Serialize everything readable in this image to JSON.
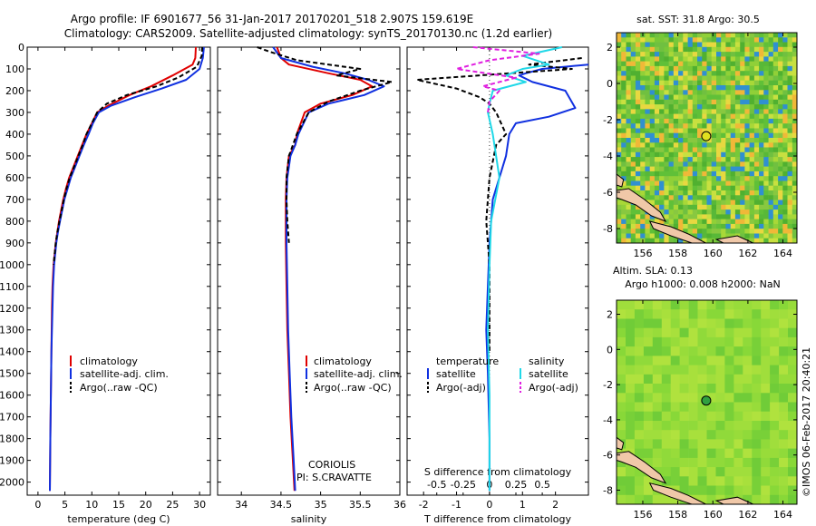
{
  "title_line1": "Argo profile: IF 6901677_56 31-Jan-2017 20170201_518 2.907S 159.619E",
  "title_line2": "Climatology: CARS2009. Satellite-adjusted climatology: synTS_20170130.nc (1.2d earlier)",
  "depth_ticks": [
    "0",
    "100",
    "200",
    "300",
    "400",
    "500",
    "600",
    "700",
    "800",
    "900",
    "1000",
    "1100",
    "1200",
    "1300",
    "1400",
    "1500",
    "1600",
    "1700",
    "1800",
    "1900",
    "2000"
  ],
  "colors": {
    "clim": "#e00000",
    "sat": "#1030e0",
    "argo": "#000000",
    "sat_s": "#20d8e8",
    "argo_s": "#e020e0"
  },
  "legend": {
    "clim": "climatology",
    "sat": "satellite-adj. clim.",
    "argo": "Argo(..raw -QC)"
  },
  "credit": {
    "line1": "CORIOLIS",
    "line2": "PI: S.CRAVATTE"
  },
  "diff_legend": {
    "temp_hdr": "temperature",
    "sal_hdr": "salinity",
    "sat": "satellite",
    "argo": "Argo(-adj)"
  },
  "map1_title": "sat. SST: 31.8 Argo: 30.5",
  "map2_title1": "Altim. SLA: 0.13",
  "map2_title2": "Argo h1000: 0.008 h2000: NaN",
  "map_yticks": [
    "2",
    "0",
    "-2",
    "-4",
    "-6",
    "-8"
  ],
  "map_xticks": [
    "156",
    "158",
    "160",
    "162",
    "164"
  ],
  "timestamp": "©IMOS 06-Feb-2017 20:40:21",
  "chart_data": [
    {
      "type": "line",
      "title": "",
      "xlabel": "temperature (deg C)",
      "ylabel": "depth",
      "xlim": [
        -2,
        32
      ],
      "ylim": [
        0,
        2060
      ],
      "xticklabels": [
        "0",
        "5",
        "10",
        "15",
        "20",
        "25",
        "30"
      ],
      "series": [
        {
          "name": "climatology",
          "color": "#e00000",
          "x": [
            29.3,
            29.2,
            28.7,
            25,
            21,
            17,
            13,
            11,
            10,
            9,
            8.2,
            7.4,
            6.6,
            5.8,
            5.2,
            4.7,
            4.3,
            3.9,
            3.6,
            3.3,
            3.1,
            2.9,
            2.7,
            2.6,
            2.5,
            2.4,
            2.3,
            2.2
          ],
          "y": [
            0,
            50,
            80,
            130,
            180,
            220,
            270,
            300,
            350,
            400,
            450,
            500,
            550,
            600,
            650,
            700,
            750,
            800,
            850,
            900,
            950,
            1000,
            1100,
            1200,
            1400,
            1600,
            1800,
            2040
          ]
        },
        {
          "name": "satellite-adj. clim.",
          "color": "#1030e0",
          "x": [
            30.8,
            30.6,
            30,
            27.5,
            23,
            18,
            13.5,
            11.3,
            10.2,
            9.4,
            8.5,
            7.7,
            6.9,
            6.1,
            5.5,
            4.9,
            4.5,
            4.1,
            3.7,
            3.4,
            3.2,
            3,
            2.8,
            2.7,
            2.5,
            2.4,
            2.3,
            2.2
          ],
          "y": [
            0,
            50,
            100,
            150,
            190,
            230,
            270,
            300,
            350,
            400,
            450,
            500,
            550,
            600,
            650,
            700,
            750,
            800,
            850,
            900,
            950,
            1000,
            1100,
            1200,
            1400,
            1600,
            1800,
            2040
          ]
        },
        {
          "name": "Argo(..raw -QC)",
          "color": "#000000",
          "dash": true,
          "x": [
            30.5,
            30.4,
            29.5,
            26,
            22,
            16.5,
            12.8,
            11,
            10,
            9,
            8.3,
            7.5,
            6.7,
            5.9,
            5.3,
            4.8,
            4.4,
            4,
            3.6,
            3.3,
            3.1,
            2.9
          ],
          "y": [
            0,
            40,
            90,
            140,
            180,
            220,
            260,
            300,
            350,
            400,
            450,
            500,
            550,
            600,
            650,
            700,
            750,
            800,
            850,
            900,
            950,
            1000
          ]
        }
      ]
    },
    {
      "type": "line",
      "title": "",
      "xlabel": "salinity",
      "ylabel": "depth",
      "xlim": [
        33.7,
        36
      ],
      "ylim": [
        0,
        2060
      ],
      "xticklabels": [
        "34",
        "34.5",
        "35",
        "35.5",
        "36"
      ],
      "series": [
        {
          "name": "climatology",
          "color": "#e00000",
          "x": [
            34.45,
            34.5,
            34.6,
            35.1,
            35.5,
            35.65,
            35.4,
            35,
            34.8,
            34.7,
            34.68,
            34.6,
            34.57,
            34.56,
            34.56,
            34.57,
            34.58,
            34.6,
            34.62,
            34.65,
            34.67
          ],
          "y": [
            0,
            50,
            80,
            120,
            150,
            180,
            220,
            260,
            300,
            400,
            450,
            500,
            600,
            700,
            900,
            1100,
            1300,
            1500,
            1700,
            1900,
            2040
          ]
        },
        {
          "name": "satellite-adj. clim.",
          "color": "#1030e0",
          "x": [
            34.4,
            34.5,
            34.9,
            35.3,
            35.6,
            35.8,
            35.55,
            35.1,
            34.85,
            34.72,
            34.68,
            34.62,
            34.58,
            34.57,
            34.57,
            34.58,
            34.59,
            34.61,
            34.63,
            34.66,
            34.68
          ],
          "y": [
            0,
            50,
            90,
            120,
            150,
            180,
            220,
            260,
            300,
            400,
            450,
            500,
            600,
            700,
            900,
            1100,
            1300,
            1500,
            1700,
            1900,
            2040
          ]
        },
        {
          "name": "Argo(..raw -QC)",
          "color": "#000000",
          "dash": true,
          "x": [
            34.2,
            34.35,
            34.7,
            35.5,
            35.2,
            35.9,
            35.5,
            35.1,
            34.85,
            34.7,
            34.6,
            34.57,
            34.57,
            34.58,
            34.6
          ],
          "y": [
            0,
            20,
            60,
            100,
            130,
            160,
            200,
            250,
            300,
            400,
            500,
            600,
            700,
            800,
            900
          ]
        }
      ]
    },
    {
      "type": "line",
      "title": "",
      "xlabel": "T difference from climatology",
      "x2label": "S difference from climatology",
      "ylabel": "depth",
      "xlim": [
        -2.5,
        3
      ],
      "ylim": [
        0,
        2060
      ],
      "xticklabels": [
        "-2",
        "-1",
        "0",
        "1",
        "2"
      ],
      "x2ticklabels": [
        "-0.5",
        "-0.25",
        "0",
        "0.25",
        "0.5"
      ],
      "series": [
        {
          "name": "temperature satellite",
          "color": "#1030e0",
          "x": [
            3,
            1.6,
            1.1,
            0.9,
            1.3,
            2.3,
            2.6,
            1.8,
            0.8,
            0.6,
            0.5,
            0.3,
            0.1,
            0,
            -0.05,
            -0.1,
            -0.05,
            0,
            0
          ],
          "y": [
            80,
            100,
            120,
            130,
            160,
            200,
            280,
            320,
            350,
            400,
            500,
            600,
            700,
            900,
            1100,
            1300,
            1500,
            1800,
            2040
          ]
        },
        {
          "name": "temperature Argo(-adj)",
          "color": "#000000",
          "dash": true,
          "x": [
            2.8,
            1.2,
            2.5,
            -2.2,
            -1,
            -0.3,
            0,
            0.2,
            0.5,
            0.2,
            0,
            -0.1,
            0,
            0
          ],
          "y": [
            50,
            80,
            100,
            150,
            190,
            230,
            260,
            300,
            400,
            450,
            600,
            800,
            1000,
            1400
          ]
        },
        {
          "name": "salinity satellite",
          "color": "#20d8e8",
          "x": [
            2.2,
            1,
            1.8,
            1,
            0.5,
            1.1,
            0.1,
            0,
            -0.05,
            0.1,
            0.3,
            0.05,
            0,
            -0.05,
            0,
            0
          ],
          "y": [
            0,
            40,
            80,
            100,
            130,
            160,
            200,
            260,
            300,
            400,
            600,
            800,
            1000,
            1300,
            1600,
            2040
          ]
        },
        {
          "name": "salinity Argo(-adj)",
          "color": "#e020e0",
          "dash": true,
          "x": [
            -0.5,
            1.5,
            0,
            -1,
            0.8,
            -0.2,
            0.3,
            0,
            -0.05
          ],
          "y": [
            0,
            30,
            60,
            100,
            140,
            180,
            200,
            250,
            300
          ]
        }
      ]
    },
    {
      "type": "heatmap",
      "title": "sat. SST: 31.8 Argo: 30.5",
      "xlim": [
        154.5,
        164.8
      ],
      "ylim": [
        -8.8,
        2.8
      ],
      "marker": {
        "lon": 159.619,
        "lat": -2.907,
        "color": "#e0e020"
      }
    },
    {
      "type": "heatmap",
      "title": "Altim. SLA: 0.13",
      "xlim": [
        154.5,
        164.8
      ],
      "ylim": [
        -8.8,
        2.8
      ],
      "marker": {
        "lon": 159.619,
        "lat": -2.907,
        "color": "#30a040"
      }
    }
  ]
}
